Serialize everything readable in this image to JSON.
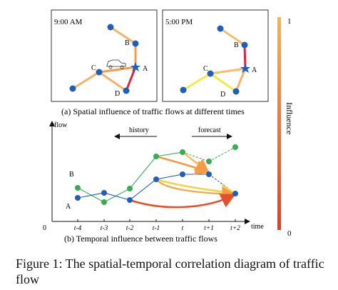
{
  "spatial": {
    "panel_left": {
      "time_label": "9:00 AM",
      "nodes": [
        {
          "id": "top",
          "label": ""
        },
        {
          "id": "B",
          "label": "B"
        },
        {
          "id": "A",
          "label": "A"
        },
        {
          "id": "C",
          "label": "C"
        },
        {
          "id": "D",
          "label": "D"
        },
        {
          "id": "left",
          "label": ""
        }
      ]
    },
    "panel_right": {
      "time_label": "5:00 PM",
      "nodes": [
        {
          "id": "top",
          "label": ""
        },
        {
          "id": "B",
          "label": "B"
        },
        {
          "id": "A",
          "label": "A"
        },
        {
          "id": "C",
          "label": "C"
        },
        {
          "id": "D",
          "label": "D"
        },
        {
          "id": "left",
          "label": ""
        }
      ]
    },
    "caption": "(a) Spatial influence of traffic flows  at different times"
  },
  "temporal": {
    "y_axis_label": "flow",
    "x_axis_label": "time",
    "origin_label": "0",
    "ticks": [
      "t-4",
      "t-3",
      "t-2",
      "t-1",
      "t",
      "t+1",
      "t+2"
    ],
    "series_label_b": "B",
    "series_label_a": "A",
    "history_label": "history",
    "forecast_label": "forecast",
    "caption": "(b) Temporal influence between traffic flows"
  },
  "colorbar": {
    "title": "Influence",
    "max_label": "1",
    "min_label": "0",
    "top_color": "#f6b26b",
    "bottom_color": "#e53a1f"
  },
  "colors": {
    "node_blue": "#1f5fb8",
    "node_green": "#3aaa55",
    "edge_red": "#d7263d",
    "edge_orange": "#f39c45",
    "edge_light_orange": "#f7be6a",
    "edge_yellow": "#f3ea46"
  },
  "figure_caption": "Figure 1: The spatial-temporal correlation diagram of traffic flow"
}
